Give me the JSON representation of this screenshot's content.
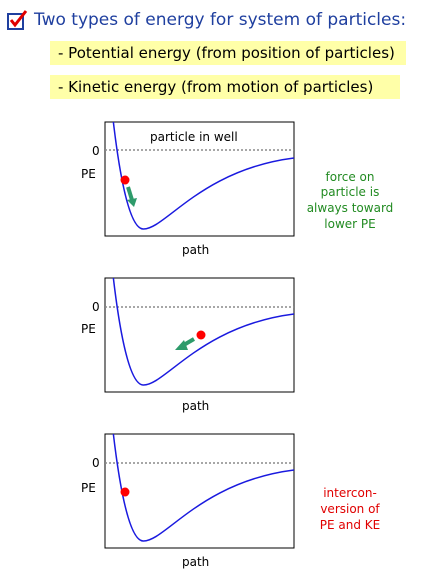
{
  "header": {
    "title": "Two types of energy for system of particles:",
    "icon": "checked-box-icon"
  },
  "bullets": [
    "- Potential energy (from position of particles)",
    "- Kinetic energy (from motion of particles)"
  ],
  "panels": [
    {
      "zero_label": "0",
      "pe_label": "PE",
      "path_label": "path",
      "title": "particle in well"
    },
    {
      "zero_label": "0",
      "pe_label": "PE",
      "path_label": "path"
    },
    {
      "zero_label": "0",
      "pe_label": "PE",
      "path_label": "path"
    }
  ],
  "notes": {
    "force": [
      "force on",
      "particle is",
      "always toward",
      "lower PE"
    ],
    "interconversion": [
      "intercon-",
      "version of",
      "PE and KE"
    ]
  },
  "colors": {
    "curve": "#1a1adf",
    "particle": "#ff0000",
    "arrow": "#2e9b6b",
    "zero_line": "#8a8a8a",
    "highlight": "#ffffa8",
    "title": "#1f3f9f",
    "note_green": "#228b22",
    "note_red": "#e00000"
  }
}
